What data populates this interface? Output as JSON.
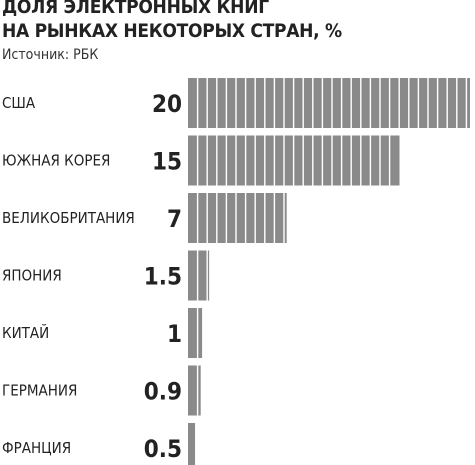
{
  "header": {
    "title_line1": "ДОЛЯ ЭЛЕКТРОННЫХ КНИГ",
    "title_line2": "НА РЫНКАХ НЕКОТОРЫХ СТРАН, %",
    "source": "Источник: РБК"
  },
  "chart_data": {
    "type": "bar",
    "orientation": "horizontal",
    "title": "ДОЛЯ ЭЛЕКТРОННЫХ КНИГ НА РЫНКАХ НЕКОТОРЫХ СТРАН, %",
    "categories": [
      "США",
      "ЮЖНАЯ КОРЕЯ",
      "ВЕЛИКОБРИТАНИЯ",
      "ЯПОНИЯ",
      "КИТАЙ",
      "ГЕРМАНИЯ",
      "ФРАНЦИЯ"
    ],
    "values": [
      20,
      15,
      7,
      1.5,
      1,
      0.9,
      0.5
    ],
    "value_labels": [
      "20",
      "15",
      "7",
      "1.5",
      "1",
      "0.9",
      "0.5"
    ],
    "xlim": [
      0,
      20
    ],
    "grid": false,
    "legend": "none",
    "colors": {
      "bar": "#8a8a8a",
      "segment_line": "#ffffff",
      "text": "#222222"
    }
  }
}
